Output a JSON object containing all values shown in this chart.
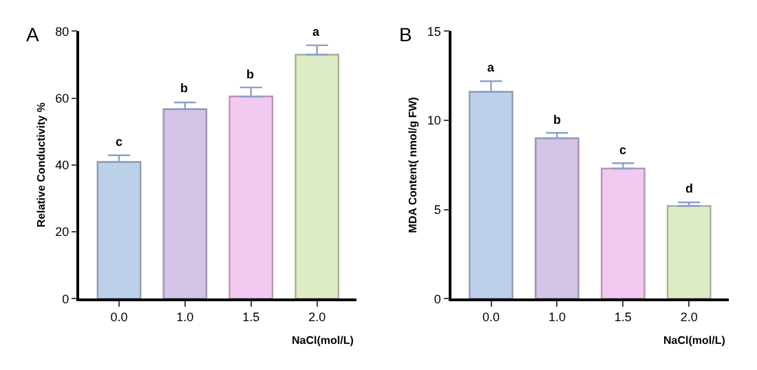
{
  "chart_data": [
    {
      "type": "bar",
      "title": "A",
      "xlabel": "NaCl(mol/L)",
      "ylabel": "Relative Conductivity %",
      "categories": [
        "0.0",
        "1.0",
        "1.5",
        "2.0"
      ],
      "values": [
        40.9,
        56.7,
        60.5,
        73.0
      ],
      "colors": [
        "#bdd0ea",
        "#d3c3e6",
        "#f2c9f0",
        "#ddecc4"
      ],
      "errors": [
        [
          40.9,
          42.9
        ],
        [
          56.7,
          58.7
        ],
        [
          60.5,
          63.2
        ],
        [
          73.0,
          75.8
        ]
      ],
      "ylim": [
        0,
        80
      ],
      "yticks": [
        0,
        20,
        40,
        60,
        80
      ],
      "annotations": [
        {
          "text": "c",
          "x": "0.0",
          "y": 42.9
        },
        {
          "text": "b",
          "x": "1.0",
          "y": 58.7
        },
        {
          "text": "b",
          "x": "1.5",
          "y": 63.2
        },
        {
          "text": "a",
          "x": "2.0",
          "y": 75.8
        }
      ]
    },
    {
      "type": "bar",
      "title": "B",
      "xlabel": "NaCl(mol/L)",
      "ylabel": "MDA Content( nmol/g FW)",
      "categories": [
        "0.0",
        "1.0",
        "1.5",
        "2.0"
      ],
      "values": [
        11.6,
        9.0,
        7.3,
        5.2
      ],
      "colors": [
        "#bdd0ea",
        "#d3c3e6",
        "#f2c9f0",
        "#ddecc4"
      ],
      "errors": [
        [
          11.6,
          12.2
        ],
        [
          9.0,
          9.3
        ],
        [
          7.3,
          7.6
        ],
        [
          5.2,
          5.4
        ]
      ],
      "ylim": [
        0,
        15
      ],
      "yticks": [
        0,
        5,
        10,
        15
      ],
      "annotations": [
        {
          "text": "a",
          "x": "0.0",
          "y": 12.2
        },
        {
          "text": "b",
          "x": "1.0",
          "y": 9.3
        },
        {
          "text": "c",
          "x": "1.5",
          "y": 7.6
        },
        {
          "text": "d",
          "x": "2.0",
          "y": 5.4
        }
      ]
    }
  ]
}
